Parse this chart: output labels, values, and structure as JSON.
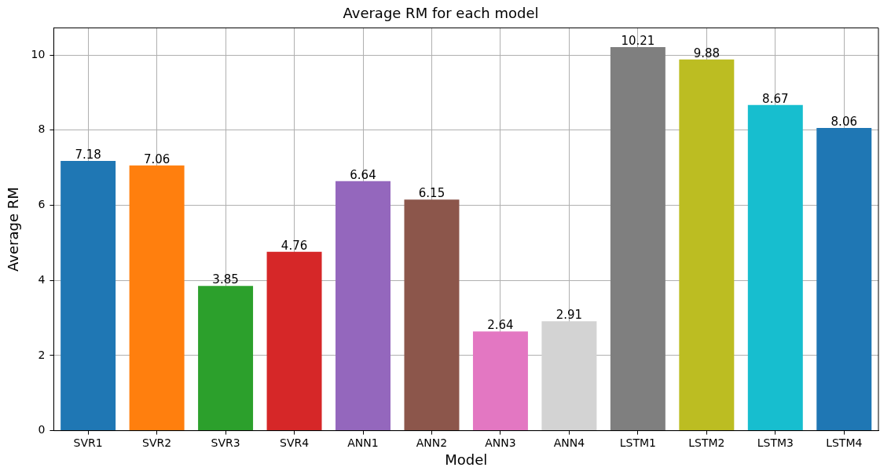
{
  "chart_data": {
    "type": "bar",
    "title": "Average RM for each model",
    "xlabel": "Model",
    "ylabel": "Average RM",
    "categories": [
      "SVR1",
      "SVR2",
      "SVR3",
      "SVR4",
      "ANN1",
      "ANN2",
      "ANN3",
      "ANN4",
      "LSTM1",
      "LSTM2",
      "LSTM3",
      "LSTM4"
    ],
    "values": [
      7.18,
      7.06,
      3.85,
      4.76,
      6.64,
      6.15,
      2.64,
      2.91,
      10.21,
      9.88,
      8.67,
      8.06
    ],
    "colors": [
      "#1f77b4",
      "#ff7f0e",
      "#2ca02c",
      "#d62728",
      "#9467bd",
      "#8c564b",
      "#e377c2",
      "#d3d3d3",
      "#7f7f7f",
      "#bcbd22",
      "#17becf",
      "#1f77b4"
    ],
    "ylim": [
      0,
      10.72
    ],
    "yticks": [
      0,
      2,
      4,
      6,
      8,
      10
    ],
    "grid": true,
    "data_labels": true,
    "legend": false
  }
}
